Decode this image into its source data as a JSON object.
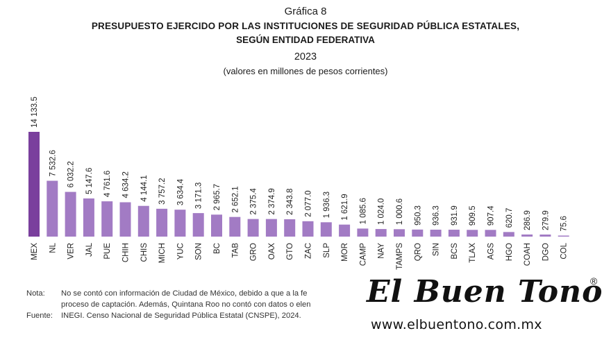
{
  "header": {
    "label": "Gráfica 8",
    "title_line1": "PRESUPUESTO EJERCIDO POR LAS INSTITUCIONES DE SEGURIDAD PÚBLICA ESTATALES,",
    "title_line2": "SEGÚN ENTIDAD FEDERATIVA",
    "year": "2023",
    "subtitle": "(valores en millones de pesos corrientes)"
  },
  "chart_data": {
    "type": "bar",
    "categories": [
      "MEX",
      "NL",
      "VER",
      "JAL",
      "PUE",
      "CHIH",
      "CHIS",
      "MICH",
      "YUC",
      "SON",
      "BC",
      "TAB",
      "GRO",
      "OAX",
      "GTO",
      "ZAC",
      "SLP",
      "MOR",
      "CAMP",
      "NAY",
      "TAMPS",
      "QRO",
      "SIN",
      "BCS",
      "TLAX",
      "AGS",
      "HGO",
      "COAH",
      "DGO",
      "COL"
    ],
    "values": [
      14133.5,
      7532.6,
      6032.2,
      5147.6,
      4761.6,
      4634.2,
      4144.1,
      3757.2,
      3634.4,
      3171.3,
      2965.7,
      2652.1,
      2375.4,
      2374.9,
      2343.8,
      2077.0,
      1936.3,
      1621.9,
      1085.6,
      1024.0,
      1000.6,
      950.3,
      936.3,
      931.9,
      909.5,
      907.4,
      620.7,
      286.9,
      279.9,
      75.6
    ],
    "value_labels": [
      "14 133.5",
      "7 532.6",
      "6 032.2",
      "5 147.6",
      "4 761.6",
      "4 634.2",
      "4 144.1",
      "3 757.2",
      "3 634.4",
      "3 171.3",
      "2 965.7",
      "2 652.1",
      "2 375.4",
      "2 374.9",
      "2 343.8",
      "2 077.0",
      "1 936.3",
      "1 621.9",
      "1 085.6",
      "1 024.0",
      "1 000.6",
      "950.3",
      "936.3",
      "931.9",
      "909.5",
      "907.4",
      "620.7",
      "286.9",
      "279.9",
      "75.6"
    ],
    "highlight_color": "#7a3f9d",
    "bar_color": "#a27bc4",
    "ylim": [
      0,
      14133.5
    ]
  },
  "footer": {
    "note_label": "Nota:",
    "note_line1": "No se contó con información de Ciudad de México, debido a que a la fe",
    "note_line2": "proceso de captación. Además, Quintana Roo no contó con datos o elen",
    "source_label": "Fuente:",
    "source_text": "INEGI. Censo Nacional de Seguridad Pública Estatal (CNSPE), 2024."
  },
  "watermark": {
    "logo": "El Buen Tono",
    "registered": "®",
    "url": "www.elbuentono.com.mx"
  }
}
